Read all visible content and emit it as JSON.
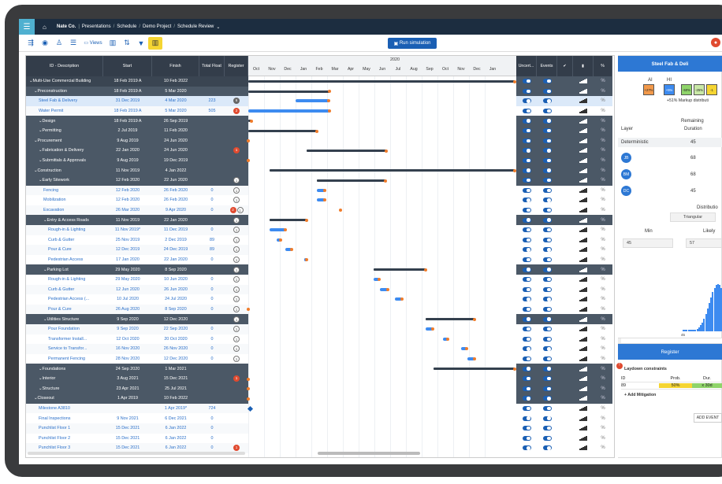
{
  "topbar": {
    "company": "Nate Co.",
    "crumbs": [
      "Presentations",
      "Schedule",
      "Demo Project",
      "Schedule Review"
    ]
  },
  "toolbar": {
    "views_label": "Views",
    "run_label": "Run simulation"
  },
  "columns": {
    "id": "ID - Description",
    "start": "Start",
    "finish": "Finish",
    "float": "Total Float",
    "register": "Register"
  },
  "gantt": {
    "year": "2020",
    "months": [
      "Oct",
      "Nov",
      "Dec",
      "Jan",
      "Feb",
      "Mar",
      "Apr",
      "May",
      "Jun",
      "Jul",
      "Aug",
      "Sep",
      "Oct",
      "Nov",
      "Dec",
      "Jan"
    ]
  },
  "rcols": [
    "Uncert...",
    "Events",
    "",
    "",
    ""
  ],
  "rows": [
    {
      "name": "Multi-Use Commercial Building",
      "start": "18 Feb 2019 A",
      "finish": "10 Feb 2022",
      "float": "",
      "reg": "",
      "type": "sum",
      "lvl": 0
    },
    {
      "name": "Preconstruction",
      "start": "18 Feb 2019 A",
      "finish": "5 Mar 2020",
      "float": "",
      "reg": "",
      "type": "sum",
      "lvl": 1
    },
    {
      "name": "Steel Fab & Delivery",
      "start": "31 Dec 2019",
      "finish": "4 Mar 2020",
      "float": "223",
      "reg": "6",
      "type": "task",
      "lvl": 2,
      "sel": true
    },
    {
      "name": "Water Permit",
      "start": "18 Feb 2019 A",
      "finish": "5 Mar 2020",
      "float": "505",
      "reg": "2",
      "type": "task",
      "lvl": 2
    },
    {
      "name": "Design",
      "start": "18 Feb 2019 A",
      "finish": "26 Sep 2019",
      "float": "",
      "reg": "",
      "type": "sum",
      "lvl": 2
    },
    {
      "name": "Permitting",
      "start": "2 Jul 2019",
      "finish": "11 Feb 2020",
      "float": "",
      "reg": "",
      "type": "sum",
      "lvl": 2
    },
    {
      "name": "Procurement",
      "start": "9 Aug 2019",
      "finish": "24 Jun 2020",
      "float": "",
      "reg": "",
      "type": "sum",
      "lvl": 1
    },
    {
      "name": "Fabrication & Delivery",
      "start": "22 Jan 2020",
      "finish": "24 Jun 2020",
      "float": "",
      "reg": "1",
      "type": "sum",
      "lvl": 2
    },
    {
      "name": "Submittals & Approvals",
      "start": "9 Aug 2019",
      "finish": "19 Dec 2019",
      "float": "",
      "reg": "",
      "type": "sum",
      "lvl": 2
    },
    {
      "name": "Construction",
      "start": "11 Nov 2019",
      "finish": "4 Jan 2022",
      "float": "",
      "reg": "",
      "type": "sum",
      "lvl": 1
    },
    {
      "name": "Early Sitework",
      "start": "12 Feb 2020",
      "finish": "22 Jun 2020",
      "float": "",
      "reg": "1",
      "type": "sum",
      "lvl": 2
    },
    {
      "name": "Fencing",
      "start": "12 Feb 2020",
      "finish": "26 Feb 2020",
      "float": "0",
      "reg": "1",
      "type": "task",
      "lvl": 3
    },
    {
      "name": "Mobilization",
      "start": "12 Feb 2020",
      "finish": "26 Feb 2020",
      "float": "0",
      "reg": "1",
      "type": "task",
      "lvl": 3
    },
    {
      "name": "Excavation",
      "start": "26 Mar 2020",
      "finish": "9 Apr 2020",
      "float": "0",
      "reg": "2|1",
      "type": "task",
      "lvl": 3
    },
    {
      "name": "Entry & Access Roads",
      "start": "11 Nov 2019",
      "finish": "22 Jan 2020",
      "float": "",
      "reg": "1",
      "type": "sum",
      "lvl": 3
    },
    {
      "name": "Rough-in & Lighting",
      "start": "11 Nov 2019*",
      "finish": "11 Dec 2019",
      "float": "0",
      "reg": "1",
      "type": "task",
      "lvl": 4
    },
    {
      "name": "Curb & Gutter",
      "start": "25 Nov 2019",
      "finish": "2 Dec 2019",
      "float": "89",
      "reg": "1",
      "type": "task",
      "lvl": 4
    },
    {
      "name": "Pour & Cure",
      "start": "12 Dec 2019",
      "finish": "24 Dec 2019",
      "float": "89",
      "reg": "1",
      "type": "task",
      "lvl": 4
    },
    {
      "name": "Pedestrian Access",
      "start": "17 Jan 2020",
      "finish": "22 Jan 2020",
      "float": "0",
      "reg": "1",
      "type": "task",
      "lvl": 4
    },
    {
      "name": "Parking Lot",
      "start": "29 May 2020",
      "finish": "8 Sep 2020",
      "float": "",
      "reg": "1",
      "type": "sum",
      "lvl": 3
    },
    {
      "name": "Rough-in & Lighting",
      "start": "29 May 2020",
      "finish": "10 Jun 2020",
      "float": "0",
      "reg": "1",
      "type": "task",
      "lvl": 4
    },
    {
      "name": "Curb & Gutter",
      "start": "12 Jun 2020",
      "finish": "26 Jun 2020",
      "float": "0",
      "reg": "1",
      "type": "task",
      "lvl": 4
    },
    {
      "name": "Pedestrian Access (...",
      "start": "10 Jul 2020",
      "finish": "24 Jul 2020",
      "float": "0",
      "reg": "1",
      "type": "task",
      "lvl": 4
    },
    {
      "name": "Pour & Cure",
      "start": "26 Aug 2020",
      "finish": "8 Sep 2020",
      "float": "0",
      "reg": "1",
      "type": "task",
      "lvl": 4
    },
    {
      "name": "Utilities Structure",
      "start": "9 Sep 2020",
      "finish": "12 Dec 2020",
      "float": "",
      "reg": "1",
      "type": "sum",
      "lvl": 3
    },
    {
      "name": "Pour Foundation",
      "start": "9 Sep 2020",
      "finish": "22 Sep 2020",
      "float": "0",
      "reg": "1",
      "type": "task",
      "lvl": 4
    },
    {
      "name": "Transformer Install...",
      "start": "12 Oct 2020",
      "finish": "20 Oct 2020",
      "float": "0",
      "reg": "1",
      "type": "task",
      "lvl": 4
    },
    {
      "name": "Service to Transfor...",
      "start": "16 Nov 2020",
      "finish": "26 Nov 2020",
      "float": "0",
      "reg": "1",
      "type": "task",
      "lvl": 4
    },
    {
      "name": "Permanent Fencing",
      "start": "28 Nov 2020",
      "finish": "12 Dec 2020",
      "float": "0",
      "reg": "1",
      "type": "task",
      "lvl": 4
    },
    {
      "name": "Foundations",
      "start": "24 Sep 2020",
      "finish": "1 Mar 2021",
      "float": "",
      "reg": "",
      "type": "sum",
      "lvl": 2
    },
    {
      "name": "Interior",
      "start": "3 Aug 2021",
      "finish": "15 Dec 2021",
      "float": "",
      "reg": "1",
      "type": "sum",
      "lvl": 2
    },
    {
      "name": "Structure",
      "start": "23 Apr 2021",
      "finish": "25 Jul 2021",
      "float": "",
      "reg": "",
      "type": "sum",
      "lvl": 2
    },
    {
      "name": "Closeout",
      "start": "1 Apr 2019",
      "finish": "10 Feb 2022",
      "float": "",
      "reg": "",
      "type": "sum",
      "lvl": 1
    },
    {
      "name": "Milestone A3810",
      "start": "",
      "finish": "1 Apr 2019*",
      "float": "724",
      "reg": "",
      "type": "task",
      "lvl": 2
    },
    {
      "name": "Final Inspections",
      "start": "9 Nov 2021",
      "finish": "6 Dec 2021",
      "float": "0",
      "reg": "",
      "type": "task",
      "lvl": 2
    },
    {
      "name": "Punchlist Floor 1",
      "start": "15 Dec 2021",
      "finish": "6 Jan 2022",
      "float": "0",
      "reg": "",
      "type": "task",
      "lvl": 2
    },
    {
      "name": "Punchlist Floor 2",
      "start": "15 Dec 2021",
      "finish": "6 Jan 2022",
      "float": "0",
      "reg": "",
      "type": "task",
      "lvl": 2
    },
    {
      "name": "Punchlist Floor 3",
      "start": "15 Dec 2021",
      "finish": "6 Jan 2022",
      "float": "0",
      "reg": "1",
      "type": "task",
      "lvl": 2
    }
  ],
  "panel": {
    "title": "Steel Fab & Deli",
    "labels": {
      "ai": "AI",
      "hi": "HI",
      "markup": "+51% Markup distributi",
      "layer": "Layer",
      "remaining": "Remaining",
      "duration": "Duration",
      "distribution": "Distributio",
      "triangular": "Triangular",
      "min": "Min",
      "likely": "Likely"
    },
    "steps": [
      "+27%",
      "+5%",
      "-50%",
      "-25%",
      "-1"
    ],
    "layers": [
      {
        "name": "Deterministic",
        "value": "45"
      },
      {
        "name": "JB",
        "value": "68"
      },
      {
        "name": "BM",
        "value": "68"
      },
      {
        "name": "DC",
        "value": "45"
      }
    ],
    "min_value": "45",
    "likely_value": "57",
    "hist_axis": "45"
  },
  "register": {
    "title": "Register",
    "item": "Laydown constraints",
    "cols": {
      "id": "ID",
      "prob": "Prob.",
      "due": "Dur."
    },
    "row": {
      "id": "89",
      "prob": "50%",
      "due": "x 30d"
    },
    "add_mitigation": "+ Add Mitigation",
    "add_event": "ADD EVENT"
  }
}
